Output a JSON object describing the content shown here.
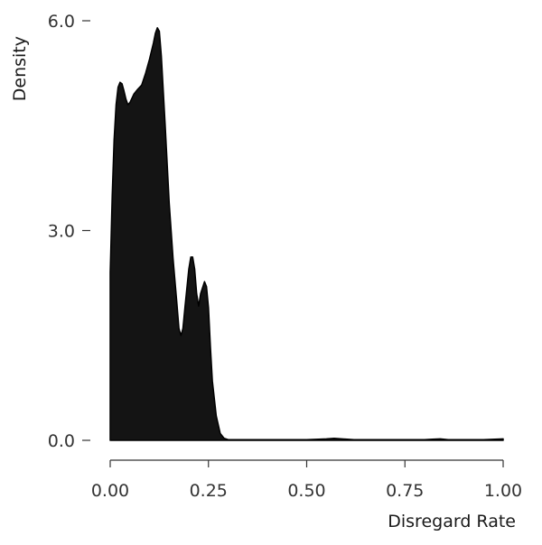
{
  "chart_data": {
    "type": "area",
    "title": "",
    "xlabel": "Disregard Rate",
    "ylabel": "Density",
    "xlim": [
      0.0,
      1.0
    ],
    "ylim": [
      0.0,
      6.0
    ],
    "x_ticks": [
      "0.00",
      "0.25",
      "0.50",
      "0.75",
      "1.00"
    ],
    "y_ticks": [
      "0.0",
      "3.0",
      "6.0"
    ],
    "grid": false,
    "legend": "none",
    "fill_color": "#141414",
    "series": [
      {
        "x": [
          0.0,
          0.005,
          0.01,
          0.015,
          0.02,
          0.025,
          0.03,
          0.035,
          0.04,
          0.045,
          0.05,
          0.06,
          0.07,
          0.08,
          0.09,
          0.1,
          0.11,
          0.115,
          0.12,
          0.125,
          0.13,
          0.14,
          0.15,
          0.16,
          0.17,
          0.175,
          0.18,
          0.185,
          0.19,
          0.2,
          0.205,
          0.21,
          0.215,
          0.22,
          0.225,
          0.23,
          0.24,
          0.245,
          0.25,
          0.255,
          0.26,
          0.27,
          0.28,
          0.29,
          0.3,
          0.32,
          0.35,
          0.4,
          0.45,
          0.5,
          0.53,
          0.55,
          0.57,
          0.59,
          0.62,
          0.65,
          0.7,
          0.75,
          0.8,
          0.82,
          0.84,
          0.86,
          0.9,
          0.95,
          1.0
        ],
        "y": [
          2.4,
          3.5,
          4.3,
          4.8,
          5.05,
          5.12,
          5.1,
          5.0,
          4.88,
          4.8,
          4.83,
          4.95,
          5.02,
          5.08,
          5.25,
          5.45,
          5.68,
          5.82,
          5.9,
          5.85,
          5.5,
          4.5,
          3.4,
          2.6,
          1.95,
          1.6,
          1.5,
          1.6,
          1.9,
          2.45,
          2.62,
          2.62,
          2.45,
          2.1,
          1.92,
          2.1,
          2.27,
          2.2,
          1.9,
          1.35,
          0.85,
          0.35,
          0.1,
          0.03,
          0.01,
          0.01,
          0.01,
          0.01,
          0.01,
          0.01,
          0.015,
          0.02,
          0.03,
          0.02,
          0.01,
          0.01,
          0.01,
          0.01,
          0.01,
          0.015,
          0.02,
          0.01,
          0.01,
          0.01,
          0.02
        ]
      }
    ]
  }
}
